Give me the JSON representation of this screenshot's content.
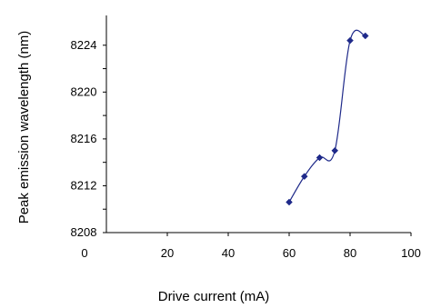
{
  "chart_data": {
    "type": "scatter",
    "title": "",
    "xlabel": "Drive current (mA)",
    "ylabel": "Peak emission wavelength (nm)",
    "xlim": [
      0,
      100
    ],
    "ylim": [
      8208,
      8226
    ],
    "x_ticks": [
      "0",
      "20",
      "40",
      "60",
      "80",
      "100"
    ],
    "y_ticks": [
      "8208",
      "8212",
      "8216",
      "8220",
      "8224"
    ],
    "grid": false,
    "legend": "none",
    "series": [
      {
        "x": [
          60,
          65,
          70,
          75,
          80,
          85
        ],
        "y": [
          8210.6,
          8212.8,
          8214.4,
          8215.0,
          8224.4,
          8224.8
        ],
        "color": "#1f2a8a",
        "marker": "diamond",
        "line": "smooth"
      }
    ]
  }
}
